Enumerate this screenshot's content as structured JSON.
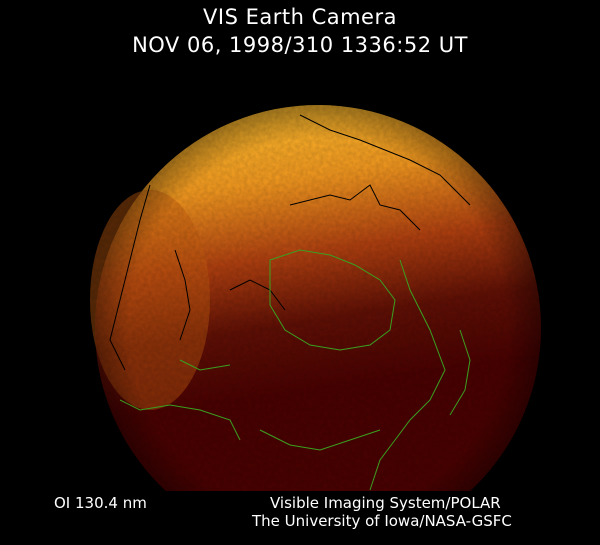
{
  "header": {
    "title": "VIS Earth Camera",
    "timestamp": "NOV 06, 1998/310 1336:52 UT"
  },
  "footer": {
    "filter": "OI  130.4 nm",
    "instrument": "Visible Imaging System/POLAR",
    "organization": "The University of Iowa/NASA-GSFC"
  },
  "colors": {
    "background": "#000000",
    "nightside": "#4a0202",
    "dayglow": "#f0a020",
    "coastline_day": "#000000",
    "coastline_night": "#3aa020"
  }
}
